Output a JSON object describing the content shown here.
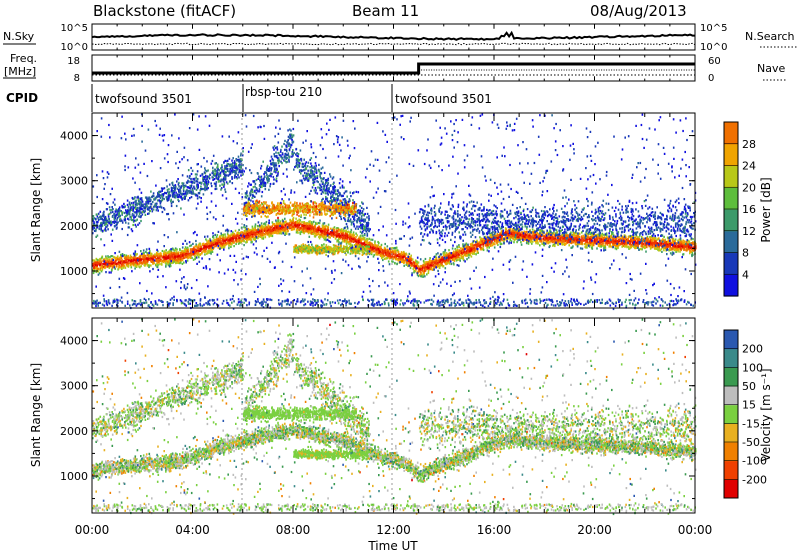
{
  "header": {
    "title": "Blackstone (fitACF)",
    "beam": "Beam 11",
    "date": "08/Aug/2013"
  },
  "noise_panel": {
    "left_label": "N.Sky",
    "right_label": "N.Search",
    "left_ticks": [
      "10^5",
      "10^0"
    ],
    "right_ticks": [
      "10^5",
      "10^0"
    ]
  },
  "freq_panel": {
    "left_label_line1": "Freq.",
    "left_label_line2": "[MHz]",
    "right_label": "Nave",
    "left_ticks": [
      "18",
      "8"
    ],
    "right_ticks": [
      "60",
      "0"
    ]
  },
  "cpid": {
    "label": "CPID",
    "segments": [
      {
        "name": "twofsound 3501",
        "start_h": 0,
        "end_h": 6
      },
      {
        "name": "rbsp-tou 210",
        "start_h": 6,
        "end_h": 12
      },
      {
        "name": "twofsound 3501",
        "start_h": 12,
        "end_h": 24
      }
    ]
  },
  "power_panel": {
    "ylabel": "Slant Range [km]",
    "yticks": [
      1000,
      2000,
      3000,
      4000
    ],
    "colorbar_label": "Power [dB]",
    "colorbar_ticks": [
      4,
      8,
      12,
      16,
      20,
      24,
      28
    ]
  },
  "velocity_panel": {
    "ylabel": "Slant Range [km]",
    "yticks": [
      1000,
      2000,
      3000,
      4000
    ],
    "colorbar_label": "Velocity [m s⁻¹]",
    "colorbar_ticks": [
      "200",
      "100",
      "50",
      "15",
      "-15",
      "-50",
      "-100",
      "-200"
    ]
  },
  "xaxis": {
    "label": "Time UT",
    "ticks": [
      "00:00",
      "04:00",
      "08:00",
      "12:00",
      "16:00",
      "20:00",
      "00:00"
    ]
  },
  "chart_data": {
    "type": "heatmap",
    "x_range_hours": [
      0,
      24
    ],
    "y_range_km": [
      180,
      4500
    ],
    "power_colors": [
      "#1010e0",
      "#1838b8",
      "#2a6a9a",
      "#3c9a6a",
      "#5ebe3c",
      "#b8c818",
      "#f0a400",
      "#f07000",
      "#f03800",
      "#e00000"
    ],
    "velocity_colors": [
      "#2020b0",
      "#2a58b0",
      "#3a8a8a",
      "#3a9a50",
      "#bdbdbd",
      "#7ad040",
      "#e8b020",
      "#f08000",
      "#f04000",
      "#e00000"
    ],
    "power_main_band": [
      {
        "t": 0,
        "km": 1150
      },
      {
        "t": 2,
        "km": 1270
      },
      {
        "t": 3.5,
        "km": 1350
      },
      {
        "t": 5,
        "km": 1650
      },
      {
        "t": 6,
        "km": 1800
      },
      {
        "t": 8,
        "km": 2050
      },
      {
        "t": 10,
        "km": 1800
      },
      {
        "t": 11.5,
        "km": 1450
      },
      {
        "t": 12.5,
        "km": 1300
      },
      {
        "t": 13,
        "km": 1050
      },
      {
        "t": 15,
        "km": 1500
      },
      {
        "t": 16.5,
        "km": 1850
      },
      {
        "t": 18,
        "km": 1750
      },
      {
        "t": 20,
        "km": 1700
      },
      {
        "t": 22,
        "km": 1650
      },
      {
        "t": 24,
        "km": 1550
      }
    ]
  }
}
